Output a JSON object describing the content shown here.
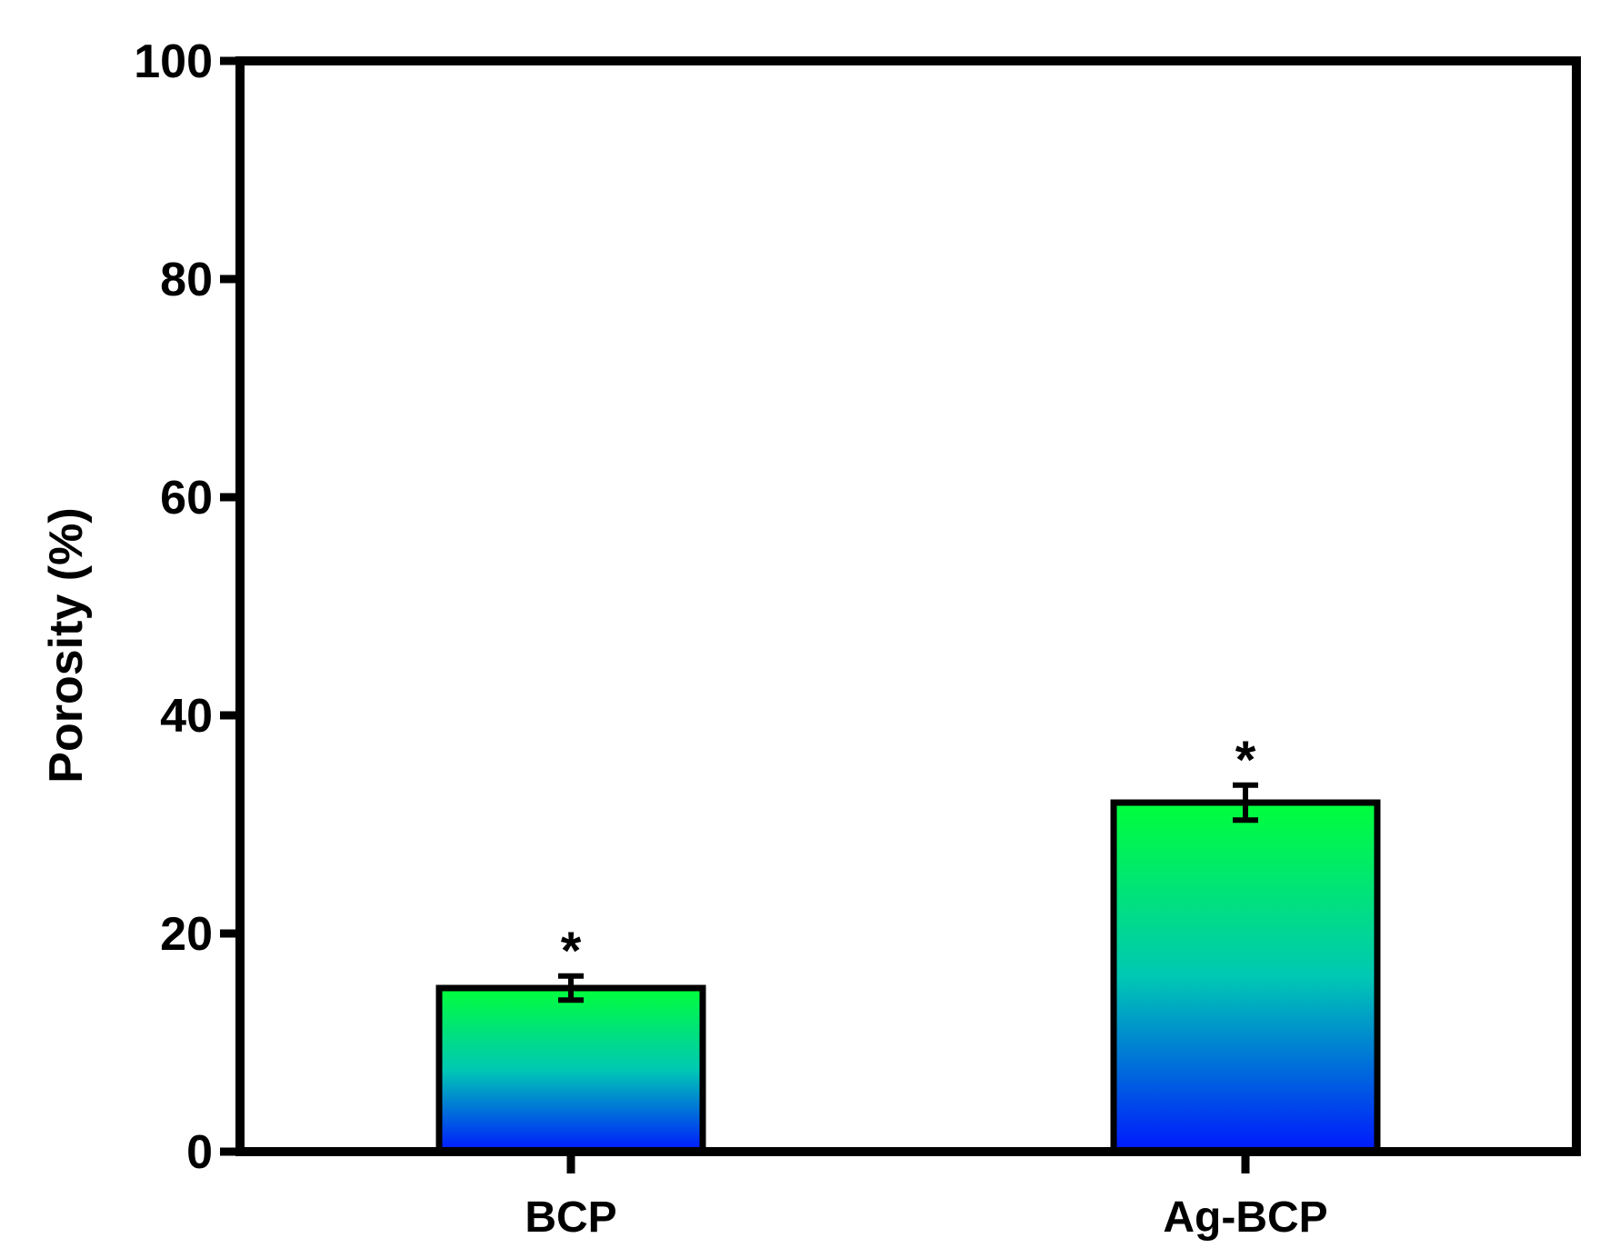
{
  "chart_data": {
    "type": "bar",
    "title": "",
    "xlabel": "",
    "ylabel": "Porosity (%)",
    "ylim": [
      0,
      100
    ],
    "yticks": [
      0,
      20,
      40,
      60,
      80,
      100
    ],
    "grid": false,
    "categories": [
      "BCP",
      "Ag-BCP"
    ],
    "series": [
      {
        "values": [
          15.0,
          32.0
        ],
        "errors": [
          1.1,
          1.6
        ]
      }
    ],
    "annotations": [
      "*",
      "*"
    ],
    "colors": {
      "bar_top": "#00ff3a",
      "bar_mid": "#00c8b4",
      "bar_bottom": "#0018ff",
      "axis": "#000000"
    }
  }
}
